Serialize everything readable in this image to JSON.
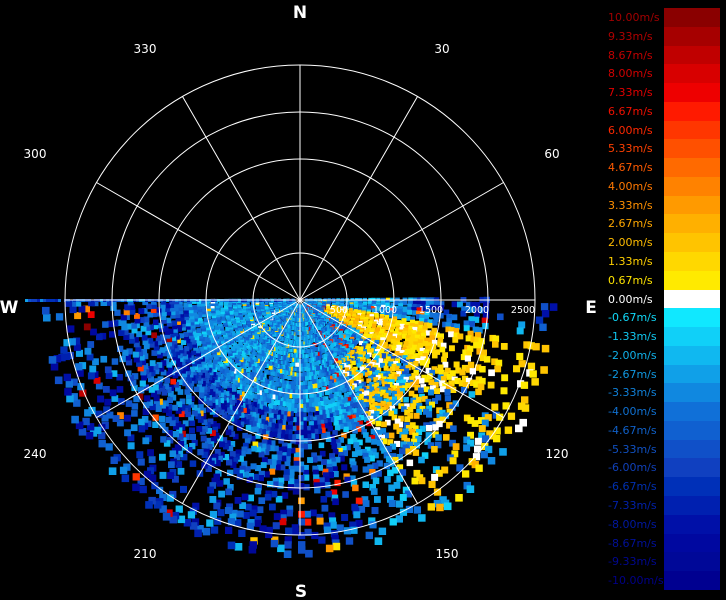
{
  "compass": {
    "north": "N",
    "east": "E",
    "south": "S",
    "west": "W"
  },
  "bearings": [
    "330",
    "30",
    "300",
    "60",
    "240",
    "120",
    "210",
    "150"
  ],
  "range_labels": [
    "500",
    "1000",
    "1500",
    "2000",
    "2500"
  ],
  "legend": [
    {
      "label": "10.00m/s",
      "color": "#8a0000",
      "text": "#a00000"
    },
    {
      "label": "9.33m/s",
      "color": "#a60000",
      "text": "#b00000"
    },
    {
      "label": "8.67m/s",
      "color": "#c00000",
      "text": "#c00000"
    },
    {
      "label": "8.00m/s",
      "color": "#d80000",
      "text": "#d00000"
    },
    {
      "label": "7.33m/s",
      "color": "#ee0000",
      "text": "#e00000"
    },
    {
      "label": "6.67m/s",
      "color": "#ff1a00",
      "text": "#f01000"
    },
    {
      "label": "6.00m/s",
      "color": "#ff3600",
      "text": "#ff2800"
    },
    {
      "label": "5.33m/s",
      "color": "#ff5000",
      "text": "#ff4000"
    },
    {
      "label": "4.67m/s",
      "color": "#ff6a00",
      "text": "#ff5a00"
    },
    {
      "label": "4.00m/s",
      "color": "#ff8200",
      "text": "#ff7800"
    },
    {
      "label": "3.33m/s",
      "color": "#ff9a00",
      "text": "#ff9000"
    },
    {
      "label": "2.67m/s",
      "color": "#ffb000",
      "text": "#ffa800"
    },
    {
      "label": "2.00m/s",
      "color": "#ffc400",
      "text": "#ffbc00"
    },
    {
      "label": "1.33m/s",
      "color": "#ffd800",
      "text": "#ffd000"
    },
    {
      "label": "0.67m/s",
      "color": "#ffea00",
      "text": "#ffe400"
    },
    {
      "label": "0.00m/s",
      "color": "#ffffff",
      "text": "#ffffff"
    },
    {
      "label": "-0.67m/s",
      "color": "#10e8ff",
      "text": "#10d8f8"
    },
    {
      "label": "-1.33m/s",
      "color": "#10d0f8",
      "text": "#10c8f0"
    },
    {
      "label": "-2.00m/s",
      "color": "#10b8f0",
      "text": "#10b0e8"
    },
    {
      "label": "-2.67m/s",
      "color": "#10a0e8",
      "text": "#1098e0"
    },
    {
      "label": "-3.33m/s",
      "color": "#1088e0",
      "text": "#1080d8"
    },
    {
      "label": "-4.00m/s",
      "color": "#1070d8",
      "text": "#1070d0"
    },
    {
      "label": "-4.67m/s",
      "color": "#1060d0",
      "text": "#1060c8"
    },
    {
      "label": "-5.33m/s",
      "color": "#1050c8",
      "text": "#1050c0"
    },
    {
      "label": "-6.00m/s",
      "color": "#1040c0",
      "text": "#1040b8"
    },
    {
      "label": "-6.67m/s",
      "color": "#0030b8",
      "text": "#0030b0"
    },
    {
      "label": "-7.33m/s",
      "color": "#0020b0",
      "text": "#0020a8"
    },
    {
      "label": "-8.00m/s",
      "color": "#0010a8",
      "text": "#0018a0"
    },
    {
      "label": "-8.67m/s",
      "color": "#0008a0",
      "text": "#001098"
    },
    {
      "label": "-9.33m/s",
      "color": "#000898",
      "text": "#000890"
    },
    {
      "label": "-10.00m/s",
      "color": "#000090",
      "text": "#000088"
    }
  ]
}
